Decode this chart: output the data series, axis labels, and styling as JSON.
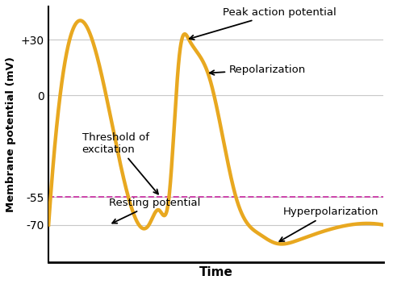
{
  "xlabel": "Time",
  "ylabel": "Membrane potential (mV)",
  "line_color": "#E8A820",
  "line_width": 3.2,
  "dashed_line_color": "#CC44AA",
  "dashed_line_y": -55,
  "background_color": "#ffffff",
  "grid_color": "#c8c8c8",
  "ylim": [
    -90,
    48
  ],
  "xlim": [
    0,
    1
  ],
  "ytick_vals": [
    -70,
    -55,
    0,
    30
  ],
  "ytick_labels": [
    "-70",
    "-55",
    "0",
    "+30"
  ],
  "annotation_fontsize": 9.5
}
